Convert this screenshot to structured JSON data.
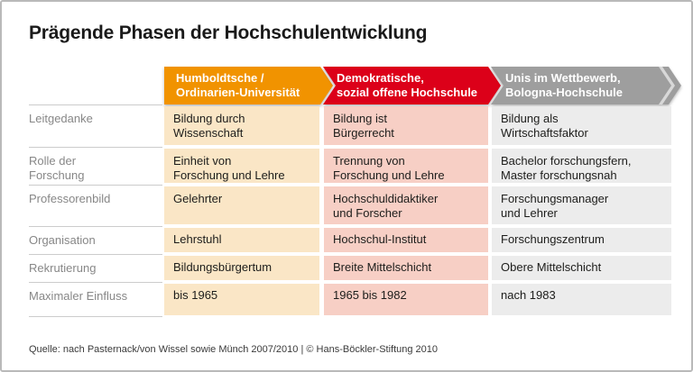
{
  "title": "Prägende Phasen der Hochschulentwicklung",
  "source_line": "Quelle: nach Pasternack/von Wissel sowie Münch 2007/2010 | © Hans-Böckler-Stiftung 2010",
  "colors": {
    "phase1": "#F19300",
    "phase2": "#DC0019",
    "phase3": "#9E9E9E",
    "cell1": "#FAE6C6",
    "cell2": "#F7CFC5",
    "cell3": "#ECECEC",
    "label-text": "#878787",
    "body-text": "#1D1D1B",
    "line": "#CCCCCC"
  },
  "phases": [
    {
      "label": "Humboldtsche /\nOrdinarien-Universität"
    },
    {
      "label": "Demokratische,\nsozial offene Hochschule"
    },
    {
      "label": "Unis im Wettbewerb,\nBologna-Hochschule"
    }
  ],
  "rows": [
    {
      "label": "Leitgedanke",
      "cells": [
        "Bildung durch\nWissenschaft",
        "Bildung ist\nBürgerrecht",
        "Bildung als\nWirtschaftsfaktor"
      ]
    },
    {
      "label": "Rolle der\nForschung",
      "cells": [
        "Einheit von\nForschung und Lehre",
        "Trennung von\nForschung und Lehre",
        "Bachelor forschungsfern,\nMaster forschungsnah"
      ]
    },
    {
      "label": "Professorenbild",
      "cells": [
        "Gelehrter",
        "Hochschuldidaktiker\nund Forscher",
        "Forschungsmanager\nund Lehrer"
      ]
    },
    {
      "label": "Organisation",
      "cells": [
        "Lehrstuhl",
        "Hochschul-Institut",
        "Forschungszentrum"
      ]
    },
    {
      "label": "Rekrutierung",
      "cells": [
        "Bildungsbürgertum",
        "Breite Mittelschicht",
        "Obere Mittelschicht"
      ]
    },
    {
      "label": "Maximaler Einfluss",
      "cells": [
        "bis 1965",
        "1965 bis 1982",
        "nach 1983"
      ]
    }
  ]
}
